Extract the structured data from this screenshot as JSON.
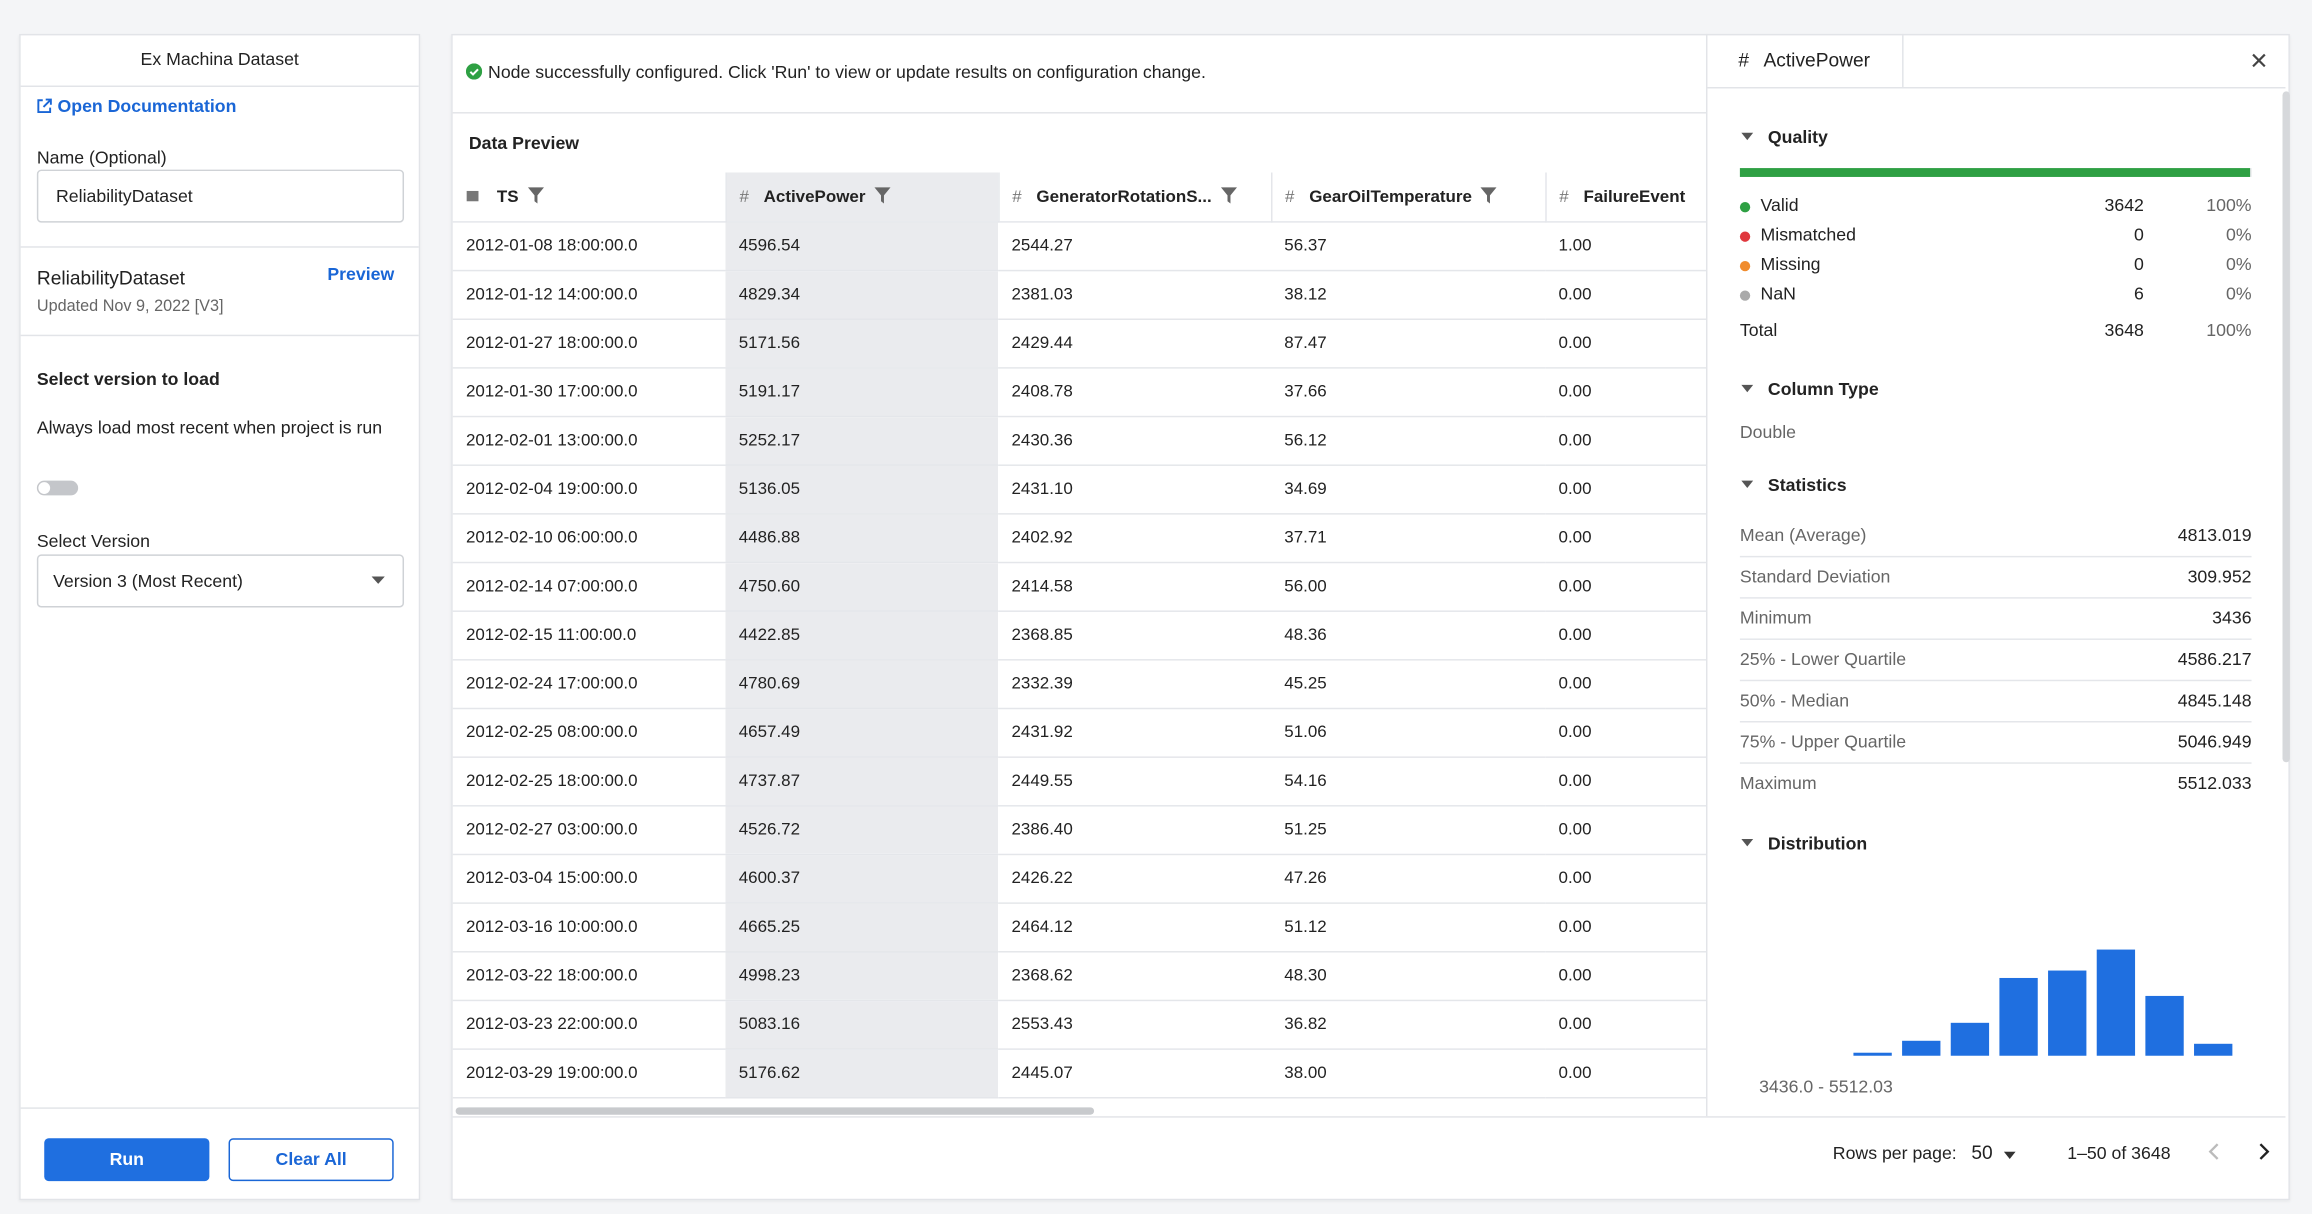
{
  "left": {
    "title": "Ex Machina Dataset",
    "doc_link": "Open Documentation",
    "name_label": "Name (Optional)",
    "name_value": "ReliabilityDataset",
    "dataset_name": "ReliabilityDataset",
    "preview": "Preview",
    "updated": "Updated Nov 9, 2022 [V3]",
    "select_heading": "Select version to load",
    "always_load": "Always load most recent when project is run",
    "version_label": "Select Version",
    "version_value": "Version 3 (Most Recent)",
    "run": "Run",
    "clear": "Clear All"
  },
  "main": {
    "status": "Node successfully configured. Click 'Run' to view or update results on configuration change.",
    "preview_title": "Data Preview",
    "columns": [
      {
        "name": "TS"
      },
      {
        "symbol": "#",
        "name": "ActivePower"
      },
      {
        "symbol": "#",
        "name": "GeneratorRotationS..."
      },
      {
        "symbol": "#",
        "name": "GearOilTemperature"
      },
      {
        "symbol": "#",
        "name": "FailureEvent"
      }
    ],
    "rows": [
      [
        "2012-01-08 18:00:00.0",
        "4596.54",
        "2544.27",
        "56.37",
        "1.00"
      ],
      [
        "2012-01-12 14:00:00.0",
        "4829.34",
        "2381.03",
        "38.12",
        "0.00"
      ],
      [
        "2012-01-27 18:00:00.0",
        "5171.56",
        "2429.44",
        "87.47",
        "0.00"
      ],
      [
        "2012-01-30 17:00:00.0",
        "5191.17",
        "2408.78",
        "37.66",
        "0.00"
      ],
      [
        "2012-02-01 13:00:00.0",
        "5252.17",
        "2430.36",
        "56.12",
        "0.00"
      ],
      [
        "2012-02-04 19:00:00.0",
        "5136.05",
        "2431.10",
        "34.69",
        "0.00"
      ],
      [
        "2012-02-10 06:00:00.0",
        "4486.88",
        "2402.92",
        "37.71",
        "0.00"
      ],
      [
        "2012-02-14 07:00:00.0",
        "4750.60",
        "2414.58",
        "56.00",
        "0.00"
      ],
      [
        "2012-02-15 11:00:00.0",
        "4422.85",
        "2368.85",
        "48.36",
        "0.00"
      ],
      [
        "2012-02-24 17:00:00.0",
        "4780.69",
        "2332.39",
        "45.25",
        "0.00"
      ],
      [
        "2012-02-25 08:00:00.0",
        "4657.49",
        "2431.92",
        "51.06",
        "0.00"
      ],
      [
        "2012-02-25 18:00:00.0",
        "4737.87",
        "2449.55",
        "54.16",
        "0.00"
      ],
      [
        "2012-02-27 03:00:00.0",
        "4526.72",
        "2386.40",
        "51.25",
        "0.00"
      ],
      [
        "2012-03-04 15:00:00.0",
        "4600.37",
        "2426.22",
        "47.26",
        "0.00"
      ],
      [
        "2012-03-16 10:00:00.0",
        "4665.25",
        "2464.12",
        "51.12",
        "0.00"
      ],
      [
        "2012-03-22 18:00:00.0",
        "4998.23",
        "2368.62",
        "48.30",
        "0.00"
      ],
      [
        "2012-03-23 22:00:00.0",
        "5083.16",
        "2553.43",
        "36.82",
        "0.00"
      ],
      [
        "2012-03-29 19:00:00.0",
        "5176.62",
        "2445.07",
        "38.00",
        "0.00"
      ]
    ],
    "rows_per_page_label": "Rows per page:",
    "rows_per_page": 50,
    "page_range": "1–50 of 3648"
  },
  "panel": {
    "symbol": "#",
    "column": "ActivePower",
    "quality": {
      "title": "Quality",
      "rows": [
        {
          "label": "Valid",
          "count": 3642,
          "percent": "100%",
          "color": "#2ea043"
        },
        {
          "label": "Mismatched",
          "count": 0,
          "percent": "0%",
          "color": "#e0383e"
        },
        {
          "label": "Missing",
          "count": 0,
          "percent": "0%",
          "color": "#f08c2e"
        },
        {
          "label": "NaN",
          "count": 6,
          "percent": "0%",
          "color": "#aaaaaa"
        }
      ],
      "total": {
        "label": "Total",
        "count": 3648,
        "percent": "100%"
      }
    },
    "column_type": {
      "title": "Column Type",
      "value": "Double"
    },
    "statistics": {
      "title": "Statistics",
      "rows": [
        {
          "label": "Mean (Average)",
          "value": "4813.019"
        },
        {
          "label": "Standard Deviation",
          "value": "309.952"
        },
        {
          "label": "Minimum",
          "value": "3436"
        },
        {
          "label": "25% - Lower Quartile",
          "value": "4586.217"
        },
        {
          "label": "50% - Median",
          "value": "4845.148"
        },
        {
          "label": "75% - Upper Quartile",
          "value": "5046.949"
        },
        {
          "label": "Maximum",
          "value": "5512.033"
        }
      ]
    },
    "distribution": {
      "title": "Distribution",
      "counts": [
        28,
        139,
        306,
        723,
        792,
        987,
        556,
        111
      ],
      "color": "#1f6fe0",
      "range": "3436.0 - 5512.03"
    }
  }
}
